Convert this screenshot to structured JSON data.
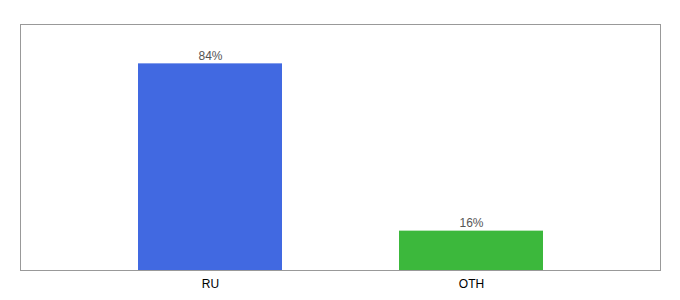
{
  "chart_data": {
    "type": "bar",
    "categories": [
      "RU",
      "OTH"
    ],
    "values": [
      84,
      16
    ],
    "value_labels": [
      "84%",
      "16%"
    ],
    "colors": [
      "#4169E1",
      "#3CB83C"
    ],
    "ylim": [
      0,
      100
    ],
    "data_labels": true,
    "tick_labels": "x"
  }
}
